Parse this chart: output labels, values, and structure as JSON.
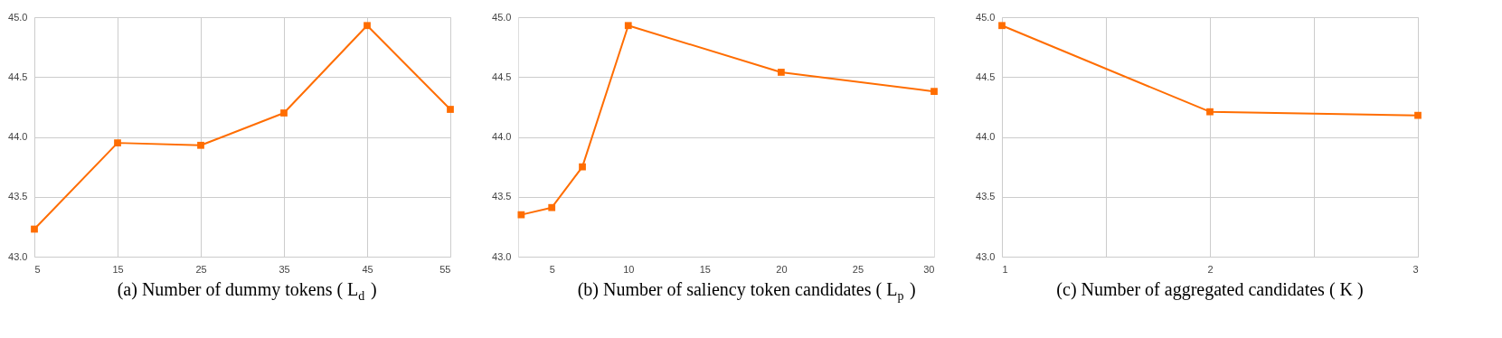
{
  "chart_data": [
    {
      "type": "line",
      "xlabel": "(a) Number of dummy tokens ( L$_{d}$ )",
      "x": [
        5,
        15,
        25,
        35,
        45,
        55
      ],
      "series": [
        {
          "color": "#ff6d01",
          "values": [
            43.23,
            43.95,
            43.93,
            44.2,
            44.93,
            44.23
          ]
        }
      ],
      "xlim": [
        5,
        55
      ],
      "xticks": [
        5,
        15,
        25,
        35,
        45,
        55
      ],
      "ylim": [
        43,
        45
      ],
      "yticks": [
        {
          "value": 43,
          "label": "43.0"
        },
        {
          "value": 43.5,
          "label": "43.5"
        },
        {
          "value": 44,
          "label": "44.0"
        },
        {
          "value": 44.5,
          "label": "44.5"
        },
        {
          "value": 45,
          "label": "45.0"
        }
      ],
      "grid": true,
      "marker": "square",
      "line_style": "solid"
    },
    {
      "type": "line",
      "xlabel": "(b) Number of saliency token candidates ( L$_{p}$ )",
      "x": [
        3,
        5,
        7,
        10,
        20,
        30
      ],
      "series": [
        {
          "color": "#ff6d01",
          "values": [
            43.35,
            43.41,
            43.75,
            44.93,
            44.54,
            44.38
          ]
        }
      ],
      "xlim": [
        2.8,
        30
      ],
      "xticks": [
        5,
        10,
        15,
        20,
        25,
        30
      ],
      "ylim": [
        43,
        45
      ],
      "yticks": [
        {
          "value": 43,
          "label": "43.0"
        },
        {
          "value": 43.5,
          "label": "43.5"
        },
        {
          "value": 44,
          "label": "44.0"
        },
        {
          "value": 44.5,
          "label": "44.5"
        },
        {
          "value": 45,
          "label": "45.0"
        }
      ],
      "grid": "y",
      "marker": "square",
      "line_style": "solid"
    },
    {
      "type": "line",
      "xlabel": "(c) Number of aggregated candidates ( K )",
      "x": [
        1,
        2,
        3
      ],
      "series": [
        {
          "color": "#ff6d01",
          "values": [
            44.93,
            44.21,
            44.18
          ]
        }
      ],
      "xlim": [
        1,
        3
      ],
      "xticks": [
        1,
        {
          "value": 1.5,
          "label": null
        },
        2,
        {
          "value": 2.5,
          "label": null
        },
        3
      ],
      "ylim": [
        43,
        45
      ],
      "yticks": [
        {
          "value": 43,
          "label": "43.0"
        },
        {
          "value": 43.5,
          "label": "43.5"
        },
        {
          "value": 44,
          "label": "44.0"
        },
        {
          "value": 44.5,
          "label": "44.5"
        },
        {
          "value": 45,
          "label": "45.0"
        }
      ],
      "grid": true,
      "marker": "square",
      "line_style": "solid"
    }
  ]
}
